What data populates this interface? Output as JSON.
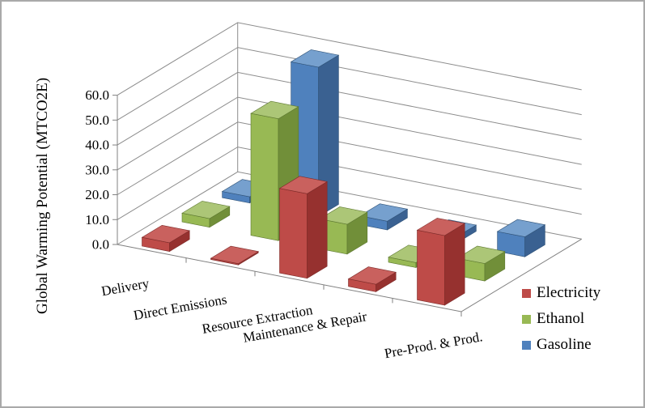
{
  "window": {
    "background": "#FFFFFF",
    "border_color": "#A9A9A9"
  },
  "chart_data": {
    "type": "bar",
    "projection": "3d-column",
    "title": "",
    "xlabel": "",
    "ylabel": "Global Warming Potential (MTCO2E)",
    "ylim": [
      0,
      60
    ],
    "ytick_step": 10,
    "ytick_labels": [
      "0.0",
      "10.0",
      "20.0",
      "30.0",
      "40.0",
      "50.0",
      "60.0"
    ],
    "grid": true,
    "gridline_color": "#8C8C8C",
    "axis_color": "#808080",
    "categories": [
      "Delivery",
      "Direct Emissions",
      "Resource Extraction",
      "Maintenance & Repair",
      "Pre-Prod. & Prod."
    ],
    "series": [
      {
        "name": "Electricity",
        "color": "#BE4B48",
        "color_top": "#C9615E",
        "color_side": "#96312F",
        "color_line": "#7E2B29",
        "values": [
          3.5,
          0.5,
          34.0,
          3.0,
          28.0
        ]
      },
      {
        "name": "Ethanol",
        "color": "#98B954",
        "color_top": "#ACC677",
        "color_side": "#718F39",
        "color_line": "#5D7830",
        "values": [
          3.5,
          49.0,
          12.0,
          2.0,
          7.0
        ]
      },
      {
        "name": "Gasoline",
        "color": "#4F81BD",
        "color_top": "#76A0CE",
        "color_side": "#3A6191",
        "color_line": "#2F5277",
        "values": [
          2.5,
          60.0,
          3.5,
          2.5,
          8.0
        ]
      }
    ],
    "legend": {
      "position": "right-bottom",
      "labels": [
        "Electricity",
        "Ethanol",
        "Gasoline"
      ]
    }
  }
}
